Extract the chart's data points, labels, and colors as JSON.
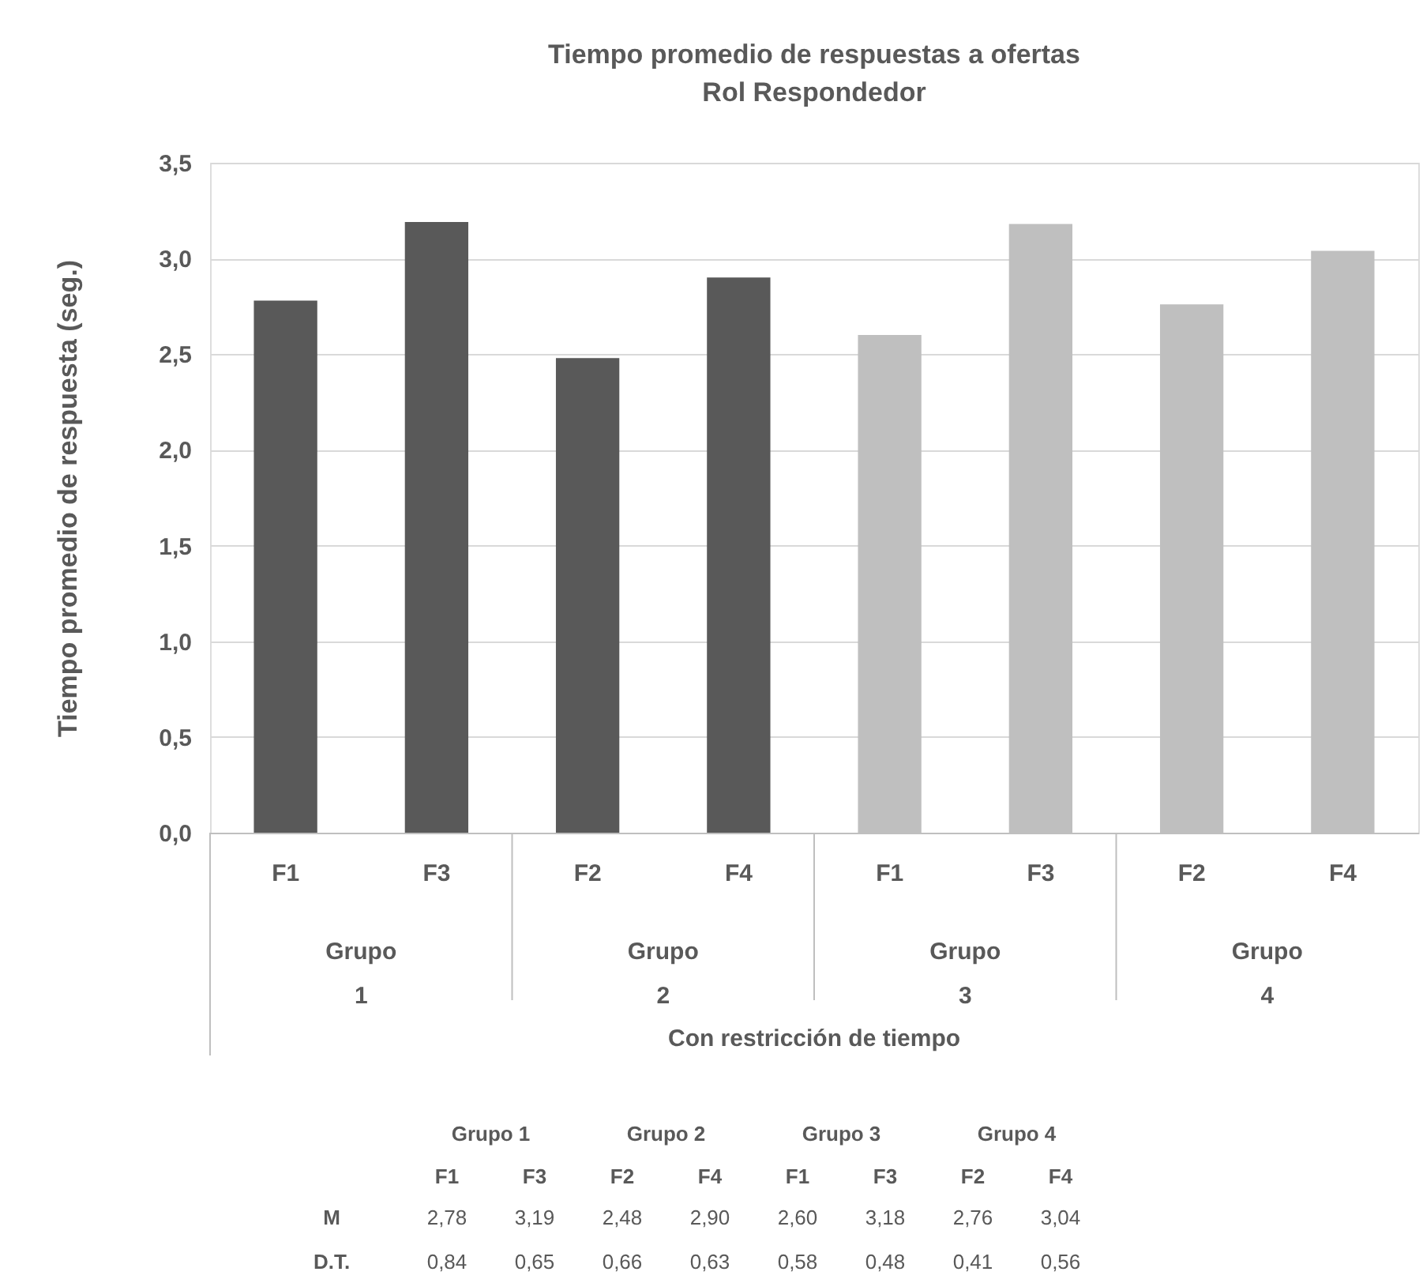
{
  "chart_data": {
    "type": "bar",
    "title": "Tiempo promedio de respuestas a ofertas\nRol Respondedor",
    "ylabel": "Tiempo promedio de respuesta (seg.)",
    "categories": [
      "F1",
      "F3",
      "F2",
      "F4",
      "F1",
      "F3",
      "F2",
      "F4"
    ],
    "values": [
      2.78,
      3.19,
      2.48,
      2.9,
      2.6,
      3.18,
      2.76,
      3.04
    ],
    "colors": [
      "#595959",
      "#595959",
      "#595959",
      "#595959",
      "#bfbfbf",
      "#bfbfbf",
      "#bfbfbf",
      "#bfbfbf"
    ],
    "ylim": [
      0,
      3.5
    ],
    "yticks": [
      {
        "value": 0,
        "label": "0,0"
      },
      {
        "value": 0.5,
        "label": "0,5"
      },
      {
        "value": 1,
        "label": "1,0"
      },
      {
        "value": 1.5,
        "label": "1,5"
      },
      {
        "value": 2,
        "label": "2,0"
      },
      {
        "value": 2.5,
        "label": "2,5"
      },
      {
        "value": 3,
        "label": "3,0"
      },
      {
        "value": 3.5,
        "label": "3,5"
      }
    ],
    "grid": "y",
    "annotations": [
      "Grupo 1",
      "Grupo 2",
      "Grupo 3",
      "Grupo 4",
      "Con restricción de tiempo",
      "M",
      "2,78",
      "3,19",
      "2,48",
      "2,90",
      "2,60",
      "3,18",
      "2,76",
      "3,04",
      "D.T.",
      "0,84",
      "0,65",
      "0,66",
      "0,63",
      "0,58",
      "0,48",
      "0,41",
      "0,56"
    ]
  }
}
